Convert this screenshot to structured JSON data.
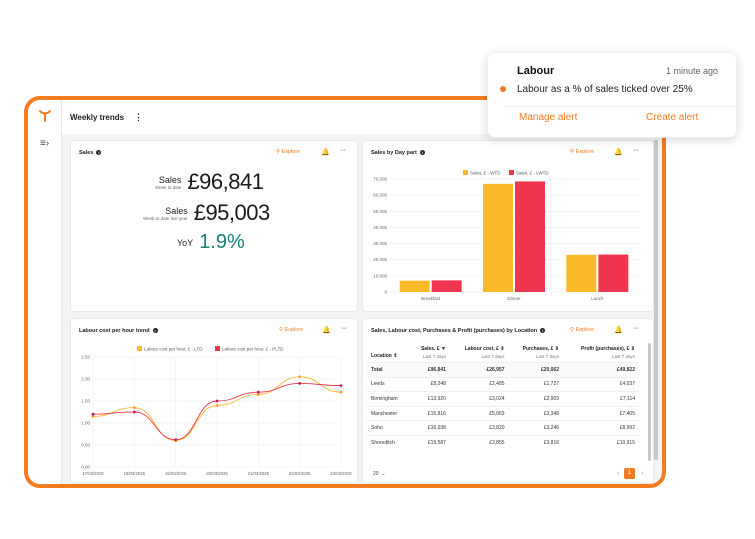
{
  "page": {
    "title": "Weekly trends"
  },
  "notification": {
    "title": "Labour",
    "time": "1 minute ago",
    "message": "Labour as a % of sales ticked over 25%",
    "manage_label": "Manage alert",
    "create_label": "Create alert"
  },
  "common": {
    "explore_label": "Explore"
  },
  "sales_card": {
    "title": "Sales",
    "rows": [
      {
        "label": "Sales",
        "sublabel": "Week to date",
        "value": "£96,841"
      },
      {
        "label": "Sales",
        "sublabel": "Week to date last year",
        "value": "£95,003"
      }
    ],
    "yoy_label": "YoY",
    "yoy_value": "1.9%"
  },
  "daypart_card": {
    "title": "Sales by Day part"
  },
  "labour_card": {
    "title": "Labour cost per hour trend"
  },
  "table_card": {
    "title": "Sales, Labour cost, Purchases & Profit (purchases) by Location",
    "headers": [
      {
        "label": "Location",
        "sub": ""
      },
      {
        "label": "Sales, £",
        "sub": "Last 7 days"
      },
      {
        "label": "Labour cost, £",
        "sub": "Last 7 days"
      },
      {
        "label": "Purchases, £",
        "sub": "Last 7 days"
      },
      {
        "label": "Profit (purchases), £",
        "sub": "Last 7 days"
      }
    ],
    "rows": [
      [
        "Total",
        "£96,841",
        "£26,957",
        "£20,062",
        "£49,822"
      ],
      [
        "Leeds",
        "£8,248",
        "£2,485",
        "£1,727",
        "£4,037"
      ],
      [
        "Birmingham",
        "£13,920",
        "£3,024",
        "£2,903",
        "£7,114"
      ],
      [
        "Manchester",
        "£15,816",
        "£5,063",
        "£3,348",
        "£7,405"
      ],
      [
        "Soho",
        "£16,038",
        "£3,820",
        "£3,246",
        "£8,992"
      ],
      [
        "Shoreditch",
        "£19,587",
        "£3,855",
        "£3,816",
        "£10,915"
      ]
    ],
    "page_size": "20",
    "page": "1"
  },
  "colors": {
    "accent": "#f47b20",
    "series_wtd": "#fbb829",
    "series_lwtd": "#f0364f",
    "positive": "#1a7f74"
  },
  "chart_data": [
    {
      "type": "bar",
      "title": "Sales by Day part",
      "categories": [
        "Breakfast",
        "Dinner",
        "Lunch"
      ],
      "series": [
        {
          "name": "Sales, £ - WTD",
          "values": [
            7000,
            67000,
            23000
          ]
        },
        {
          "name": "Sales, £ - LWTD",
          "values": [
            7200,
            68500,
            23200
          ]
        }
      ],
      "ylim": [
        0,
        70000
      ],
      "yticks": [
        "0",
        "10,000",
        "20,000",
        "30,000",
        "40,000",
        "50,000",
        "60,000",
        "70,000"
      ],
      "legend": "top"
    },
    {
      "type": "line",
      "title": "Labour cost per hour trend",
      "x": [
        "17/03/2025",
        "18/03/2025",
        "19/03/2025",
        "20/03/2025",
        "21/03/2025",
        "22/03/2025",
        "23/03/2025"
      ],
      "series": [
        {
          "name": "Labour cost per hour, £ - LTD",
          "values": [
            1.15,
            1.35,
            0.6,
            1.4,
            1.65,
            2.05,
            1.7
          ]
        },
        {
          "name": "Labour cost per hour, £ - PLTD",
          "values": [
            1.2,
            1.25,
            0.62,
            1.5,
            1.7,
            1.9,
            1.85
          ]
        }
      ],
      "ylim": [
        0,
        2.5
      ],
      "yticks": [
        "0.00",
        "0.50",
        "1.00",
        "1.50",
        "2.00",
        "2.50"
      ],
      "legend": "top"
    }
  ]
}
